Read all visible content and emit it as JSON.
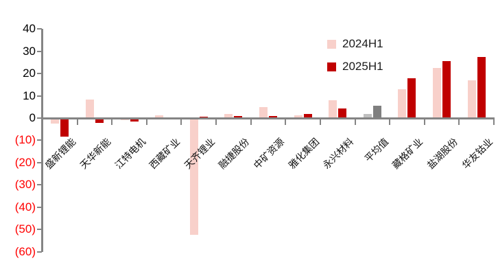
{
  "chart_data": {
    "type": "bar",
    "title": "",
    "xlabel": "",
    "ylabel": "",
    "ylim": [
      -60,
      40
    ],
    "grid": false,
    "legend_position": "top-right-inside",
    "categories": [
      "盛新锂能",
      "天华新能",
      "江特电机",
      "西藏矿业",
      "天齐锂业",
      "融捷股份",
      "中矿资源",
      "雅化集团",
      "永兴材料",
      "平均值",
      "藏格矿业",
      "盐湖股份",
      "华友钴业"
    ],
    "series": [
      {
        "name": "2024H1",
        "color": "#F8D0CA",
        "values": [
          -2.5,
          8.4,
          -0.8,
          1.2,
          -52.5,
          1.8,
          4.9,
          1.2,
          8.0,
          1.9,
          13.0,
          22.5,
          17.0
        ]
      },
      {
        "name": "2025H1",
        "color": "#C00000",
        "values": [
          -8.3,
          -2.2,
          -1.4,
          0,
          0.7,
          1.0,
          0.9,
          1.7,
          4.2,
          5.6,
          18.0,
          25.5,
          27.5
        ]
      }
    ],
    "average_category": "平均值",
    "average_colors": [
      "#BFBFBF",
      "#7F7F7F"
    ],
    "y_ticks": [
      {
        "label": "40",
        "value": 40,
        "color": "#000000"
      },
      {
        "label": "30",
        "value": 30,
        "color": "#000000"
      },
      {
        "label": "20",
        "value": 20,
        "color": "#000000"
      },
      {
        "label": "10",
        "value": 10,
        "color": "#000000"
      },
      {
        "label": "0",
        "value": 0,
        "color": "#000000"
      },
      {
        "label": "(10)",
        "value": -10,
        "color": "#FF0000"
      },
      {
        "label": "(20)",
        "value": -20,
        "color": "#FF0000"
      },
      {
        "label": "(30)",
        "value": -30,
        "color": "#FF0000"
      },
      {
        "label": "(40)",
        "value": -40,
        "color": "#FF0000"
      },
      {
        "label": "(50)",
        "value": -50,
        "color": "#FF0000"
      },
      {
        "label": "(60)",
        "value": -60,
        "color": "#FF0000"
      }
    ],
    "axis_color": "#848484"
  }
}
